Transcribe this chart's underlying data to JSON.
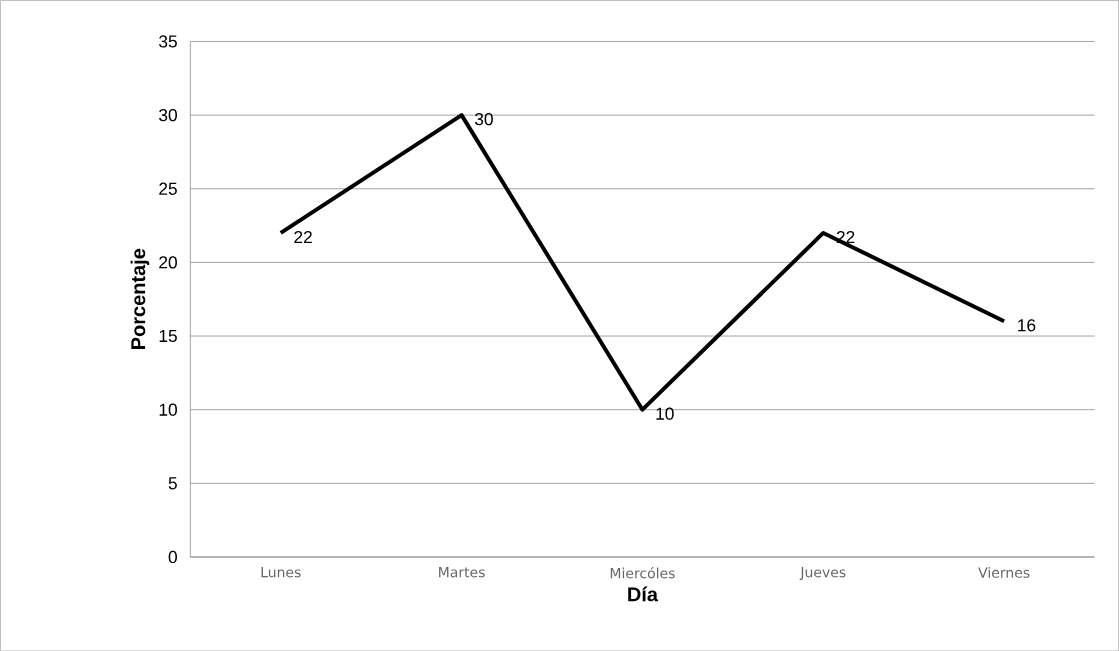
{
  "chart_data": {
    "type": "line",
    "xlabel": "Día",
    "ylabel": "Porcentaje",
    "categories": [
      "Lunes",
      "Martes",
      "Miercóles",
      "Jueves",
      "Viernes"
    ],
    "values": [
      22,
      30,
      10,
      22,
      16
    ],
    "color": "#000000",
    "ylim": [
      0,
      35
    ],
    "yticks": [
      0,
      5,
      10,
      15,
      20,
      25,
      30,
      35
    ],
    "grid": "y",
    "data_labels": true,
    "marker": "none",
    "line_style": "solid"
  }
}
